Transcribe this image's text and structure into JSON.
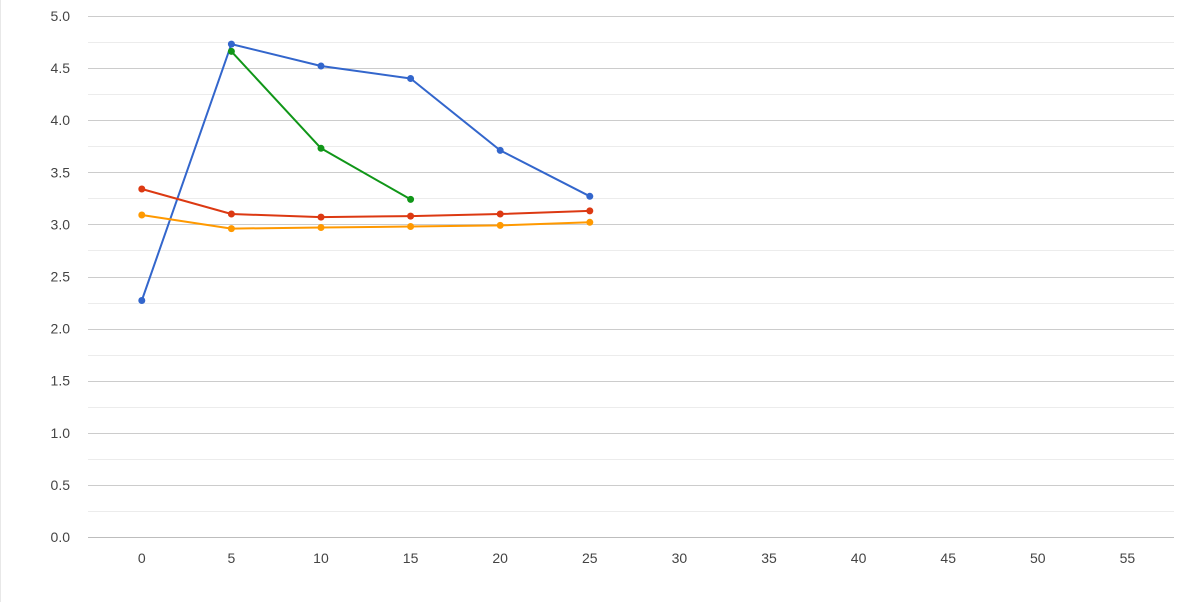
{
  "chart_data": {
    "type": "line",
    "title": "",
    "xlabel": "",
    "ylabel": "",
    "xlim": [
      -3,
      57.6
    ],
    "ylim": [
      0,
      5
    ],
    "x_ticks": [
      "0",
      "5",
      "10",
      "15",
      "20",
      "25",
      "30",
      "35",
      "40",
      "45",
      "50",
      "55"
    ],
    "y_ticks": [
      "0.0",
      "0.5",
      "1.0",
      "1.5",
      "2.0",
      "2.5",
      "3.0",
      "3.5",
      "4.0",
      "4.5",
      "5.0"
    ],
    "grid": true,
    "legend": "none",
    "series": [
      {
        "color": "#3366cc",
        "points": [
          [
            0,
            2.27
          ],
          [
            5,
            4.73
          ],
          [
            10,
            4.52
          ],
          [
            15,
            4.4
          ],
          [
            20,
            3.71
          ],
          [
            25,
            3.27
          ]
        ]
      },
      {
        "color": "#109618",
        "points": [
          [
            5,
            4.66
          ],
          [
            10,
            3.73
          ],
          [
            15,
            3.24
          ]
        ]
      },
      {
        "color": "#dc3912",
        "points": [
          [
            0,
            3.34
          ],
          [
            5,
            3.1
          ],
          [
            10,
            3.07
          ],
          [
            15,
            3.08
          ],
          [
            20,
            3.1
          ],
          [
            25,
            3.13
          ]
        ]
      },
      {
        "color": "#ff9900",
        "points": [
          [
            0,
            3.09
          ],
          [
            5,
            2.96
          ],
          [
            10,
            2.97
          ],
          [
            15,
            2.98
          ],
          [
            20,
            2.99
          ],
          [
            25,
            3.02
          ]
        ]
      }
    ]
  }
}
